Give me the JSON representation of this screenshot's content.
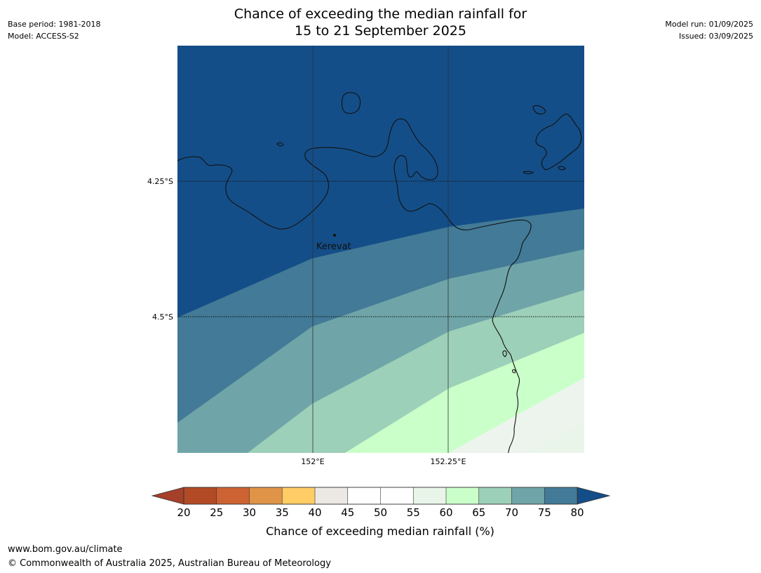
{
  "title": {
    "line1": "Chance of exceeding the median rainfall for",
    "line2": "15 to 21 September 2025"
  },
  "meta_left": {
    "base_period": "Base period: 1981-2018",
    "model": "Model: ACCESS-S2"
  },
  "meta_right": {
    "model_run": "Model run: 01/09/2025",
    "issued": "Issued: 03/09/2025"
  },
  "map": {
    "lat_labels": [
      "4.25°S",
      "4.5°S"
    ],
    "lon_labels": [
      "152°E",
      "152.25°E"
    ],
    "place_label": "Kerevat"
  },
  "colorbar": {
    "ticks": [
      "20",
      "25",
      "30",
      "35",
      "40",
      "45",
      "50",
      "55",
      "60",
      "65",
      "70",
      "75",
      "80"
    ],
    "label": "Chance of exceeding median rainfall (%)",
    "colors": {
      "below20": "#a5402a",
      "20": "#b34a26",
      "25": "#cd6232",
      "30": "#e09447",
      "35": "#ffcc66",
      "40": "#ece8e4",
      "45": "#ffffff",
      "50": "#ffffff",
      "55": "#eaf5ea",
      "60": "#caffca",
      "65": "#9dd0b8",
      "70": "#6fa5a8",
      "75": "#427a97",
      "above80": "#144e88"
    }
  },
  "footer": {
    "url": "www.bom.gov.au/climate",
    "copyright": "© Commonwealth of Australia 2025, Australian Bureau of Meteorology"
  }
}
